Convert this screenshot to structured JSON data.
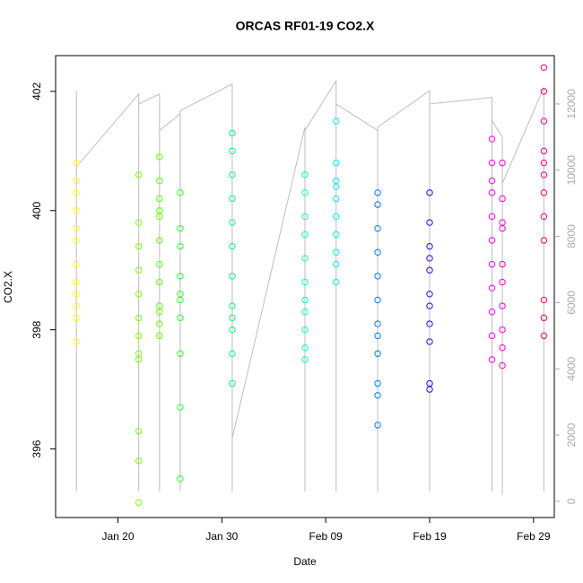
{
  "chart_data": {
    "type": "scatter",
    "title": "ORCAS RF01-19 CO2.X",
    "xlabel": "Date",
    "ylabel": "CO2.X",
    "xlim": [
      "Jan 14",
      "Mar 02"
    ],
    "xticks": [
      "Jan 20",
      "Jan 30",
      "Feb 09",
      "Feb 19",
      "Feb 29"
    ],
    "ylim": [
      394.85,
      402.6
    ],
    "yticks": [
      396,
      398,
      400,
      402
    ],
    "y2lim": [
      -490,
      13460
    ],
    "y2ticks": [
      0,
      2000,
      4000,
      6000,
      8000,
      10000,
      12000
    ],
    "series": [
      {
        "axis": "y2",
        "color": "#bebebe",
        "x": [
          "Jan 16",
          "Jan 16",
          "Jan 16",
          "Jan 22",
          "Jan 22",
          "Jan 22",
          "Jan 24",
          "Jan 24",
          "Jan 24",
          "Jan 26",
          "Jan 26",
          "Jan 26",
          "Jan 31",
          "Jan 31",
          "Jan 31",
          "Feb 07",
          "Feb 07",
          "Feb 07",
          "Feb 10",
          "Feb 10",
          "Feb 10",
          "Feb 14",
          "Feb 14",
          "Feb 14",
          "Feb 19",
          "Feb 19",
          "Feb 19",
          "Feb 25",
          "Feb 25",
          "Feb 25",
          "Feb 26",
          "Feb 26",
          "Feb 26",
          "Mar 01",
          "Mar 01"
        ],
        "values": [
          300,
          12400,
          10100,
          12300,
          300,
          12000,
          12300,
          300,
          11200,
          11700,
          300,
          11800,
          12600,
          300,
          1900,
          11300,
          300,
          11200,
          12700,
          300,
          12000,
          11200,
          300,
          11300,
          12400,
          300,
          12000,
          12200,
          300,
          11500,
          11000,
          200,
          9600,
          12500,
          300
        ]
      },
      {
        "color": "#ffff00",
        "x": "Jan 16",
        "values": [
          400.8,
          400.3,
          400.0,
          399.7,
          399.5,
          399.1,
          398.8,
          398.6,
          398.4,
          398.2,
          397.8,
          400.5
        ]
      },
      {
        "color": "#80ff00",
        "x": "Jan 22",
        "values": [
          400.6,
          399.8,
          399.4,
          399.0,
          398.6,
          398.2,
          397.9,
          397.5,
          396.3,
          395.8,
          395.1,
          397.6
        ]
      },
      {
        "color": "#5eff00",
        "x": "Jan 24",
        "values": [
          400.9,
          400.5,
          400.2,
          399.9,
          399.5,
          399.1,
          398.8,
          398.4,
          398.1,
          397.9,
          398.3,
          400.0
        ]
      },
      {
        "color": "#2bff2b",
        "x": "Jan 26",
        "values": [
          400.3,
          399.7,
          399.4,
          398.9,
          398.5,
          398.2,
          397.6,
          396.7,
          395.5,
          398.6
        ]
      },
      {
        "color": "#00ff80",
        "x": "Jan 31",
        "values": [
          401.3,
          401.0,
          400.6,
          400.2,
          399.8,
          399.4,
          398.9,
          398.4,
          398.0,
          397.6,
          397.1,
          398.2
        ]
      },
      {
        "color": "#00ffcc",
        "x": "Feb 07",
        "values": [
          400.6,
          400.3,
          399.9,
          399.6,
          399.2,
          398.8,
          398.3,
          398.0,
          397.7,
          397.5,
          398.5
        ]
      },
      {
        "color": "#00f0ff",
        "x": "Feb 10",
        "values": [
          401.5,
          400.8,
          400.5,
          400.2,
          399.9,
          399.6,
          399.3,
          398.8,
          399.1,
          400.4
        ]
      },
      {
        "color": "#0080ff",
        "x": "Feb 14",
        "values": [
          400.3,
          400.1,
          399.7,
          399.3,
          398.9,
          398.5,
          398.1,
          397.9,
          397.6,
          397.1,
          396.9,
          396.4
        ]
      },
      {
        "color": "#3300ff",
        "x": "Feb 19",
        "values": [
          400.3,
          399.8,
          399.4,
          399.0,
          398.6,
          398.4,
          398.1,
          397.8,
          397.1,
          397.0,
          399.2
        ]
      },
      {
        "color": "#ff00ff",
        "x": "Feb 25",
        "values": [
          401.2,
          400.8,
          400.3,
          399.9,
          399.5,
          399.1,
          398.7,
          398.3,
          397.9,
          397.5,
          400.5
        ]
      },
      {
        "color": "#ff00cc",
        "x": "Feb 26",
        "values": [
          400.8,
          400.2,
          399.7,
          399.1,
          398.4,
          398.0,
          397.7,
          397.4,
          399.8,
          398.8
        ]
      },
      {
        "color": "#ff0080",
        "x": "Mar 01",
        "values": [
          402.4,
          402.0,
          401.5,
          401.0,
          400.6,
          400.3,
          399.9,
          399.5,
          398.5,
          398.2,
          397.9,
          400.8
        ]
      }
    ]
  }
}
